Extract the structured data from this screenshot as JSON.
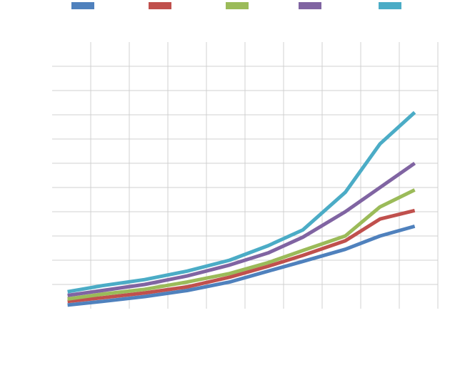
{
  "chart_data": {
    "type": "line",
    "title": "",
    "xlabel": "",
    "ylabel": "",
    "legend_position": "top",
    "grid": true,
    "xlim": [
      0,
      10
    ],
    "ylim": [
      0,
      11
    ],
    "x": [
      0.4,
      1.3,
      2.4,
      3.5,
      4.6,
      5.6,
      6.5,
      7.6,
      8.5,
      9.4
    ],
    "series": [
      {
        "name": "",
        "color": "#4f81bd",
        "values": [
          0.15,
          0.3,
          0.5,
          0.75,
          1.1,
          1.55,
          1.95,
          2.45,
          3.0,
          3.4
        ]
      },
      {
        "name": "",
        "color": "#c0504d",
        "values": [
          0.3,
          0.45,
          0.65,
          0.9,
          1.3,
          1.75,
          2.2,
          2.8,
          3.7,
          4.05
        ]
      },
      {
        "name": "",
        "color": "#9bbb59",
        "values": [
          0.4,
          0.6,
          0.8,
          1.1,
          1.45,
          1.9,
          2.4,
          3.0,
          4.2,
          4.9
        ]
      },
      {
        "name": "",
        "color": "#8064a2",
        "values": [
          0.55,
          0.75,
          1.0,
          1.35,
          1.8,
          2.3,
          2.95,
          4.0,
          5.0,
          6.0
        ]
      },
      {
        "name": "",
        "color": "#4bacc6",
        "values": [
          0.7,
          0.95,
          1.2,
          1.55,
          2.0,
          2.6,
          3.25,
          4.8,
          6.8,
          8.1
        ]
      }
    ]
  }
}
